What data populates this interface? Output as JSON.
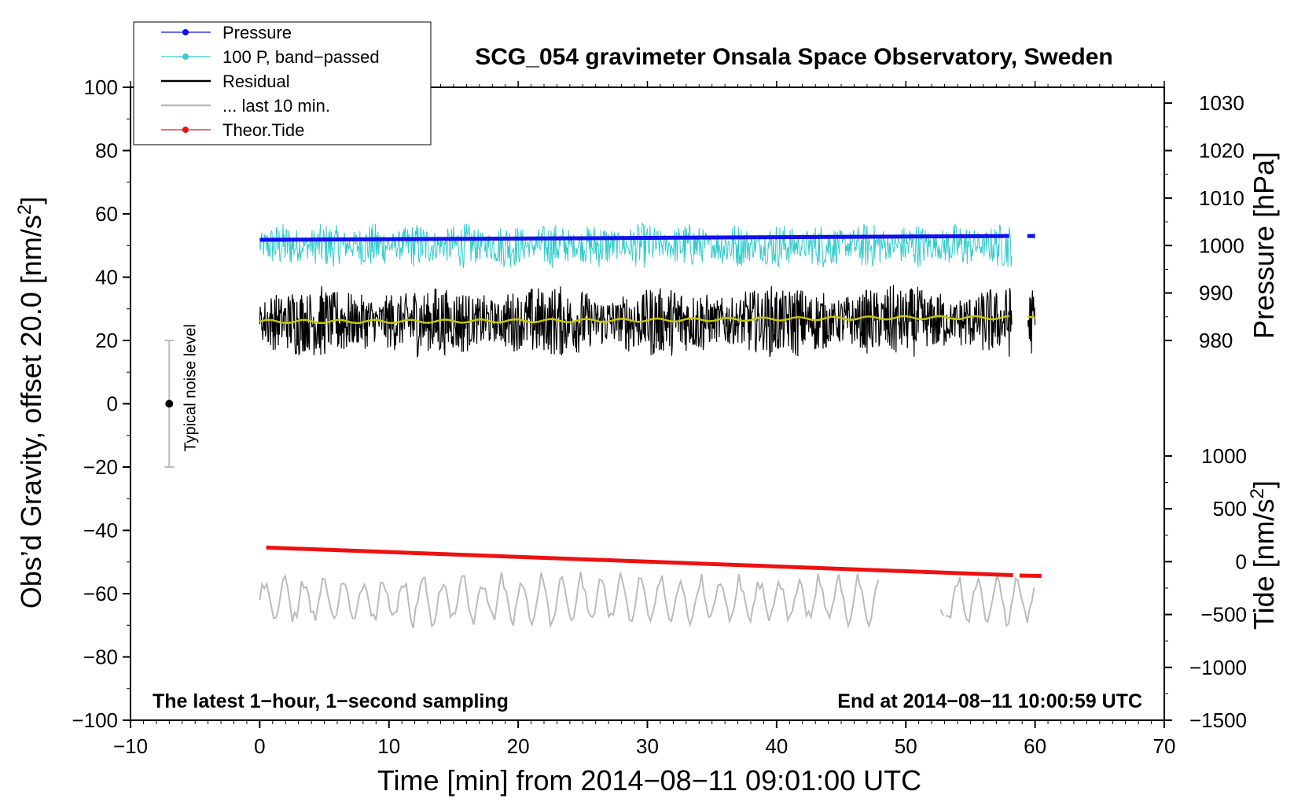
{
  "chart_data": {
    "type": "line",
    "title": "SCG_054 gravimeter Onsala Space Observatory, Sweden",
    "xlabel": "Time [min] from 2014−08−11 09:01:00 UTC",
    "ylabel_left": "Obs’d Gravity, offset 20.0 [nm/s",
    "ylabel_left_sup": "2",
    "ylabel_left_end": "]",
    "ylabel_right_pressure": "Pressure [hPa]",
    "ylabel_right_tide": "Tide [nm/s",
    "ylabel_right_tide_sup": "2",
    "ylabel_right_tide_end": "]",
    "xlim": [
      -10,
      70
    ],
    "ylim_left": [
      -100,
      100
    ],
    "x_ticks": [
      -10,
      0,
      10,
      20,
      30,
      40,
      50,
      60,
      70
    ],
    "x_tick_labels": [
      "−10",
      "0",
      "10",
      "20",
      "30",
      "40",
      "50",
      "60",
      "70"
    ],
    "y_ticks_left": [
      -100,
      -80,
      -60,
      -40,
      -20,
      0,
      20,
      40,
      60,
      80,
      100
    ],
    "y_tick_labels_left": [
      "−100",
      "−80",
      "−60",
      "−40",
      "−20",
      "0",
      "20",
      "40",
      "60",
      "80",
      "100"
    ],
    "pressure_axis": {
      "range": [
        980,
        1030
      ],
      "ticks": [
        980,
        990,
        1000,
        1010,
        1020,
        1030
      ],
      "tick_labels": [
        "980",
        "990",
        "1000",
        "1010",
        "1020",
        "1030"
      ],
      "left_equiv": [
        20,
        95
      ]
    },
    "tide_axis": {
      "range": [
        -1500,
        1000
      ],
      "ticks": [
        -1500,
        -1000,
        -500,
        0,
        500,
        1000
      ],
      "tick_labels": [
        "−1500",
        "−1000",
        "−500",
        "0",
        "500",
        "1000"
      ],
      "left_equiv": [
        -100,
        -16.5
      ]
    },
    "legend": [
      {
        "label": "Pressure",
        "color": "#1010ee",
        "style": "line-dot"
      },
      {
        "label": "100 P, band−passed",
        "color": "#33cccc",
        "style": "line-dot"
      },
      {
        "label": "Residual",
        "color": "#000000",
        "style": "line"
      },
      {
        "label": "... last 10 min.",
        "color": "#bbbbbb",
        "style": "line"
      },
      {
        "label": "Theor.Tide",
        "color": "#ee1111",
        "style": "line-dot"
      }
    ],
    "series": [
      {
        "name": "Pressure",
        "color": "#1010ee",
        "x": [
          0,
          58,
          59.5,
          60
        ],
        "y": [
          1001.2,
          1002.0,
          1002.0,
          1002.0
        ],
        "gap": [
          58.2,
          59.2
        ]
      },
      {
        "name": "100 P, band−passed",
        "color": "#33cccc",
        "x_range": [
          0,
          58.2
        ],
        "mean": 50,
        "amplitude": 6
      },
      {
        "name": "Residual",
        "color": "#000000",
        "x_range": [
          0,
          60
        ],
        "mean": 26,
        "amplitude": 9,
        "gap": [
          58.2,
          59.4
        ]
      },
      {
        "name": "Residual smoothed",
        "color": "#c8c800",
        "x": [
          0,
          10,
          20,
          30,
          40,
          50,
          58
        ],
        "y": [
          26,
          26,
          26.2,
          26.4,
          26.8,
          27.2,
          27.2
        ]
      },
      {
        "name": "... last 10 min.",
        "color": "#bbbbbb",
        "x_range": [
          0,
          60
        ],
        "mean": -62,
        "amplitude": 7,
        "gap": [
          48,
          53
        ]
      },
      {
        "name": "Theor.Tide",
        "color": "#ee1111",
        "x": [
          0.5,
          60.5
        ],
        "y": [
          134,
          -135
        ]
      }
    ],
    "noise_bar": {
      "x": -7,
      "y": 0,
      "err": 20,
      "label": "Typical noise level"
    },
    "annotations": {
      "left": "The latest 1−hour, 1−second sampling",
      "right": "End at 2014−08−11 10:00:59 UTC"
    }
  }
}
